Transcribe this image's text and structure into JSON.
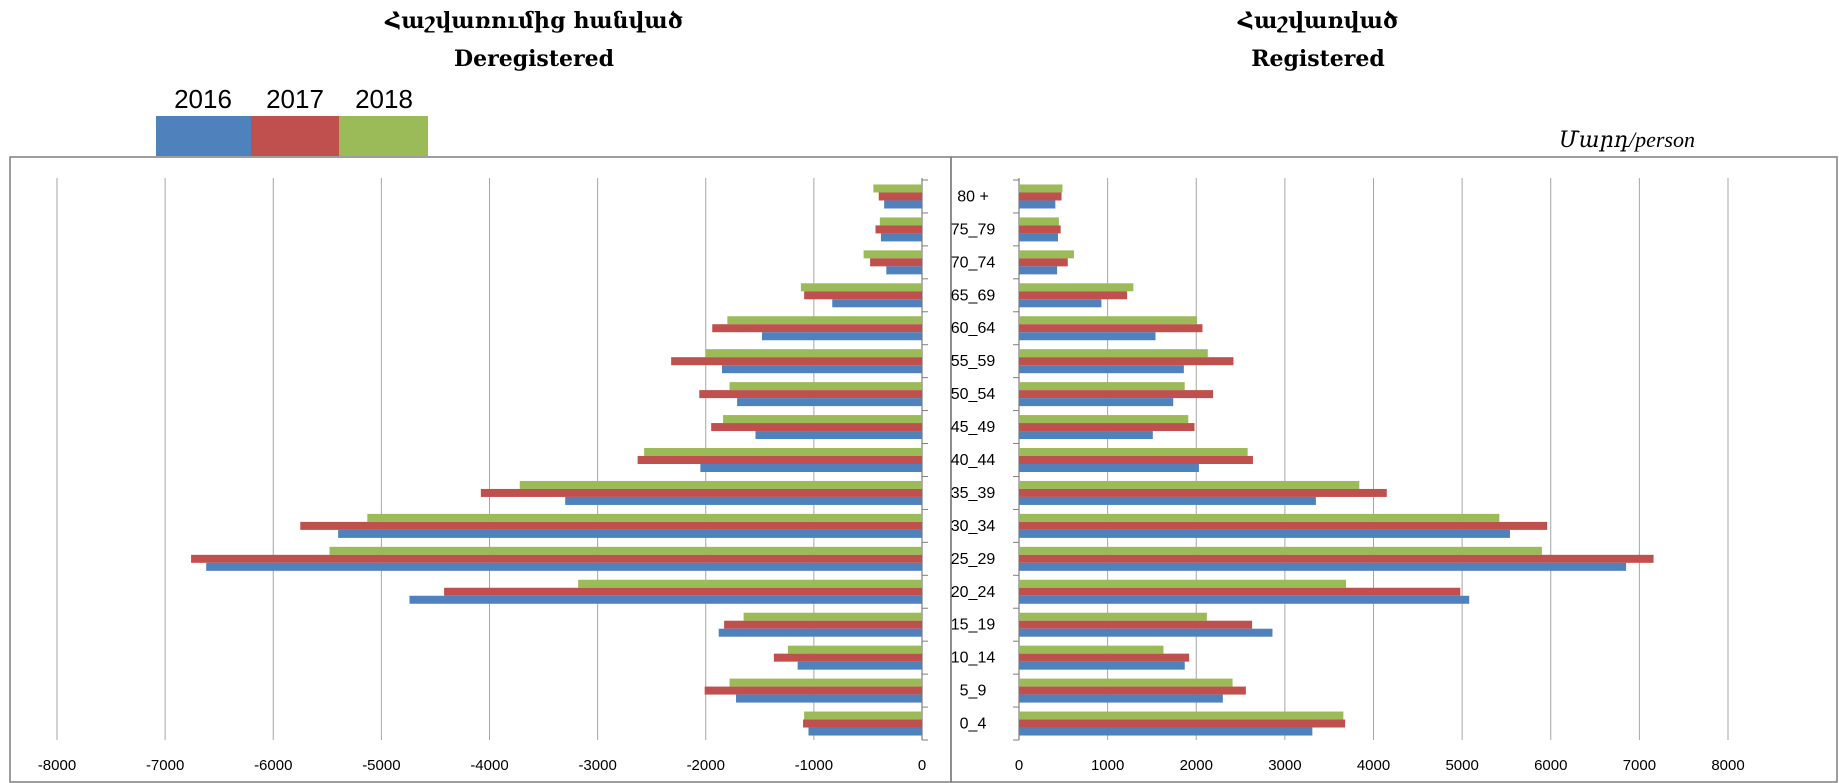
{
  "chart_data": {
    "type": "bar",
    "orientation": "horizontal",
    "unit_label": "Մարդ/person",
    "legend_placement": "top-left",
    "grid": true,
    "series_colors": {
      "2016": "#4F81BD",
      "2017": "#C0504D",
      "2018": "#9BBB59"
    },
    "series_names": [
      "2016",
      "2017",
      "2018"
    ],
    "categories": [
      "80 +",
      "75_79",
      "70_74",
      "65_69",
      "60_64",
      "55_59",
      "50_54",
      "45_49",
      "40_44",
      "35_39",
      "30_34",
      "25_29",
      "20_24",
      "15_19",
      "10_14",
      "5_9",
      "0_4"
    ],
    "panels": [
      {
        "title_hy": "Հաշվառումից հանված",
        "title_en": "Deregistered",
        "xlim": [
          -8000,
          0
        ],
        "xticks": [
          -8000,
          -7000,
          -6000,
          -5000,
          -4000,
          -3000,
          -2000,
          -1000,
          0
        ],
        "series": [
          {
            "name": "2016",
            "values": [
              -350,
              -380,
              -330,
              -830,
              -1480,
              -1850,
              -1710,
              -1540,
              -2050,
              -3300,
              -5400,
              -6620,
              -4740,
              -1880,
              -1150,
              -1720,
              -1050
            ]
          },
          {
            "name": "2017",
            "values": [
              -400,
              -430,
              -480,
              -1090,
              -1940,
              -2320,
              -2060,
              -1950,
              -2630,
              -4080,
              -5750,
              -6760,
              -4420,
              -1830,
              -1370,
              -2010,
              -1100
            ]
          },
          {
            "name": "2018",
            "values": [
              -450,
              -390,
              -540,
              -1120,
              -1800,
              -2000,
              -1780,
              -1840,
              -2570,
              -3720,
              -5130,
              -5480,
              -3180,
              -1650,
              -1240,
              -1780,
              -1090
            ]
          }
        ]
      },
      {
        "title_hy": "Հաշվառված",
        "title_en": "Registered",
        "xlim": [
          0,
          8000
        ],
        "xticks": [
          0,
          1000,
          2000,
          3000,
          4000,
          5000,
          6000,
          7000,
          8000
        ],
        "series": [
          {
            "name": "2016",
            "values": [
              410,
              440,
              430,
              930,
              1540,
              1860,
              1740,
              1510,
              2030,
              3350,
              5540,
              6850,
              5080,
              2860,
              1870,
              2300,
              3310
            ]
          },
          {
            "name": "2017",
            "values": [
              480,
              470,
              550,
              1220,
              2070,
              2420,
              2190,
              1980,
              2640,
              4150,
              5960,
              7160,
              4980,
              2630,
              1920,
              2560,
              3680
            ]
          },
          {
            "name": "2018",
            "values": [
              490,
              450,
              620,
              1290,
              2010,
              2130,
              1870,
              1910,
              2580,
              3840,
              5420,
              5900,
              3690,
              2120,
              1630,
              2410,
              3660
            ]
          }
        ]
      }
    ]
  }
}
